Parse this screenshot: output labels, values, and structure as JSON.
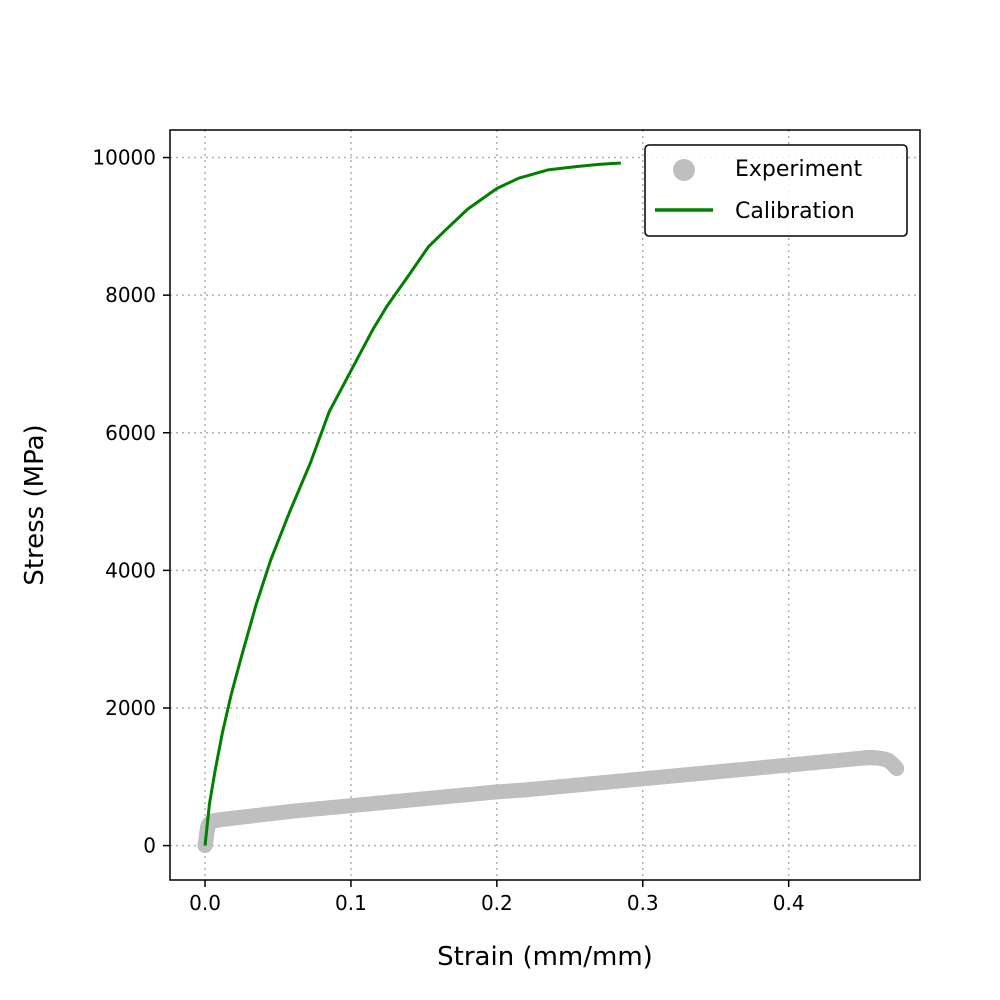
{
  "chart_data": {
    "type": "line",
    "title": "",
    "xlabel": "Strain (mm/mm)",
    "ylabel": "Stress (MPa)",
    "xlim": [
      -0.024,
      0.49
    ],
    "ylim": [
      -500,
      10400
    ],
    "xticks": [
      0.0,
      0.1,
      0.2,
      0.3,
      0.4
    ],
    "xtick_labels": [
      "0.0",
      "0.1",
      "0.2",
      "0.3",
      "0.4"
    ],
    "yticks": [
      0,
      2000,
      4000,
      6000,
      8000,
      10000
    ],
    "ytick_labels": [
      "0",
      "2000",
      "4000",
      "6000",
      "8000",
      "10000"
    ],
    "grid": true,
    "legend": "top-right",
    "colors": {
      "experiment": "#bfbfbf",
      "calibration": "#008000"
    },
    "series": [
      {
        "name": "Experiment",
        "kind": "scatter",
        "x": [
          0.0,
          0.0005,
          0.001,
          0.0015,
          0.002,
          0.003,
          0.004,
          0.006,
          0.01,
          0.02,
          0.04,
          0.06,
          0.08,
          0.1,
          0.12,
          0.14,
          0.16,
          0.18,
          0.2,
          0.22,
          0.24,
          0.26,
          0.28,
          0.3,
          0.32,
          0.34,
          0.36,
          0.38,
          0.4,
          0.42,
          0.44,
          0.45,
          0.455,
          0.46,
          0.465,
          0.468,
          0.47,
          0.472,
          0.474
        ],
        "y": [
          0,
          60,
          140,
          220,
          280,
          320,
          340,
          360,
          375,
          400,
          450,
          500,
          540,
          580,
          620,
          660,
          700,
          740,
          780,
          810,
          850,
          890,
          930,
          970,
          1010,
          1050,
          1090,
          1130,
          1170,
          1210,
          1250,
          1270,
          1280,
          1275,
          1260,
          1240,
          1210,
          1170,
          1120
        ]
      },
      {
        "name": "Calibration",
        "kind": "line",
        "x": [
          0.0,
          0.003,
          0.007,
          0.012,
          0.018,
          0.025,
          0.035,
          0.045,
          0.058,
          0.072,
          0.085,
          0.1,
          0.115,
          0.125,
          0.14,
          0.153,
          0.165,
          0.18,
          0.2,
          0.215,
          0.235,
          0.255,
          0.27,
          0.285
        ],
        "y": [
          0,
          600,
          1100,
          1650,
          2200,
          2750,
          3500,
          4150,
          4850,
          5550,
          6300,
          6900,
          7500,
          7850,
          8300,
          8700,
          8950,
          9250,
          9550,
          9700,
          9820,
          9870,
          9900,
          9920
        ]
      }
    ]
  }
}
